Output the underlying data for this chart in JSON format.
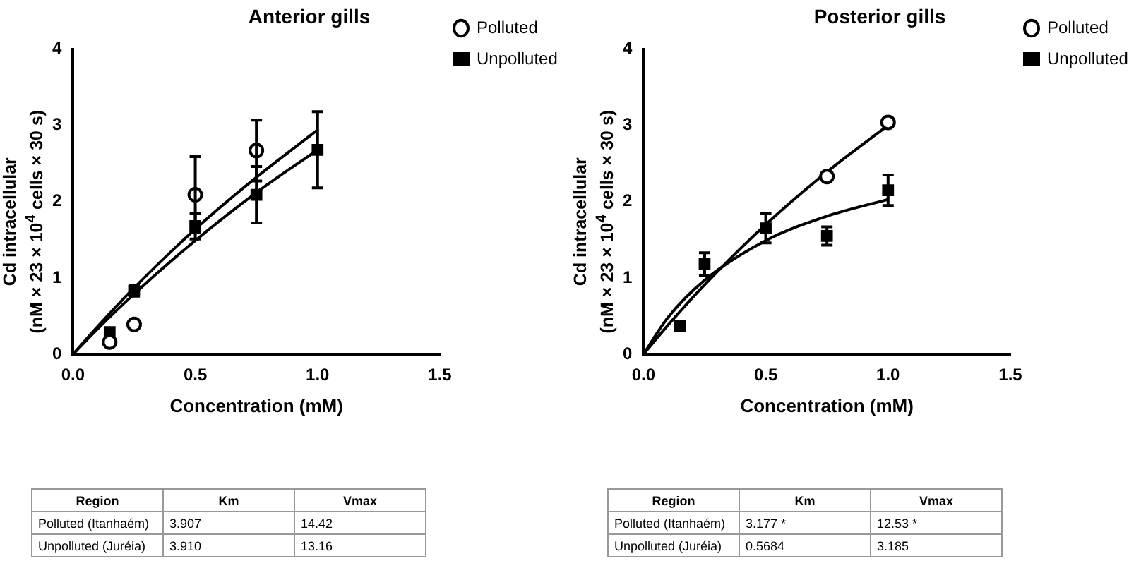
{
  "chart_data": [
    {
      "type": "scatter",
      "title": "Anterior gills",
      "xlabel": "Concentration (mM)",
      "ylabel": "Cd intracellular\n(nM × 23 × 10$^{4}$ cells × 30 s)",
      "xlim": [
        0,
        1.5
      ],
      "ylim": [
        0,
        4
      ],
      "xticks": [
        {
          "value": 0,
          "label": "0.0"
        },
        {
          "value": 0.5,
          "label": "0.5"
        },
        {
          "value": 1,
          "label": "1.0"
        },
        {
          "value": 1.5,
          "label": "1.5"
        }
      ],
      "yticks": [
        0,
        1,
        2,
        3,
        4
      ],
      "legend": "top right",
      "series": [
        {
          "name": "Polluted",
          "color": "#000000",
          "marker": "circle",
          "x": [
            0.15,
            0.25,
            0.5,
            0.75
          ],
          "values": [
            0.16,
            0.39,
            2.09,
            2.67
          ],
          "errors": [
            null,
            null,
            0.5,
            0.4
          ]
        },
        {
          "name": "Unpolluted",
          "color": "#000000",
          "marker": "square",
          "x": [
            0.15,
            0.25,
            0.5,
            0.75,
            1.0
          ],
          "values": [
            0.29,
            0.83,
            1.68,
            2.09,
            2.68
          ],
          "errors": [
            null,
            0.07,
            0.17,
            0.37,
            0.5
          ]
        },
        {
          "type": "line",
          "color": "#000000",
          "x": [
            0,
            0.1,
            0.25,
            0.5,
            0.75,
            1.0
          ],
          "values": [
            0,
            0.36,
            0.87,
            1.64,
            2.32,
            2.94
          ]
        },
        {
          "type": "line",
          "color": "#000000",
          "x": [
            0,
            0.1,
            0.25,
            0.5,
            0.75,
            1.0
          ],
          "values": [
            0,
            0.33,
            0.79,
            1.49,
            2.12,
            2.68
          ]
        }
      ]
    },
    {
      "type": "scatter",
      "title": "Posterior gills",
      "xlabel": "Concentration (mM)",
      "ylabel": "Cd intracellular\n(nM × 23 × 10$^{4}$ cells × 30 s)",
      "xlim": [
        0,
        1.5
      ],
      "ylim": [
        0,
        4
      ],
      "xticks": [
        {
          "value": 0,
          "label": "0.0"
        },
        {
          "value": 0.5,
          "label": "0.5"
        },
        {
          "value": 1,
          "label": "1.0"
        },
        {
          "value": 1.5,
          "label": "1.5"
        }
      ],
      "yticks": [
        0,
        1,
        2,
        3,
        4
      ],
      "legend": "top right",
      "series": [
        {
          "name": "Polluted",
          "color": "#000000",
          "marker": "circle",
          "x": [
            0.75,
            1.0
          ],
          "values": [
            2.33,
            3.04
          ]
        },
        {
          "name": "Unpolluted",
          "color": "#000000",
          "marker": "square",
          "x": [
            0.15,
            0.25,
            0.5,
            0.75,
            1.0
          ],
          "values": [
            0.37,
            1.18,
            1.65,
            1.55,
            2.15
          ],
          "errors": [
            null,
            0.15,
            0.19,
            0.12,
            0.2
          ]
        },
        {
          "type": "line",
          "color": "#000000",
          "x": [
            0,
            0.1,
            0.25,
            0.5,
            0.75,
            1.0
          ],
          "values": [
            0,
            0.38,
            0.91,
            1.7,
            2.39,
            3.0
          ]
        },
        {
          "type": "line",
          "color": "#000000",
          "x": [
            0,
            0.1,
            0.25,
            0.5,
            0.75,
            1.0
          ],
          "values": [
            0,
            0.48,
            0.97,
            1.49,
            1.81,
            2.03
          ]
        }
      ]
    },
    {
      "type": "other",
      "categories": [
        "Region",
        "Km",
        "Vmax"
      ],
      "y_categories": [
        "Polluted (Itanhaém)",
        "Unpolluted (Juréia)"
      ],
      "cell_labels": [
        [
          "3.907",
          "14.42"
        ],
        [
          "3.910",
          "13.16"
        ]
      ]
    },
    {
      "type": "other",
      "categories": [
        "Region",
        "Km",
        "Vmax"
      ],
      "y_categories": [
        "Polluted (Itanhaém)",
        "Unpolluted (Juréia)"
      ],
      "cell_labels": [
        [
          "3.177 *",
          "12.53 *"
        ],
        [
          "0.5684",
          "3.185"
        ]
      ]
    }
  ]
}
